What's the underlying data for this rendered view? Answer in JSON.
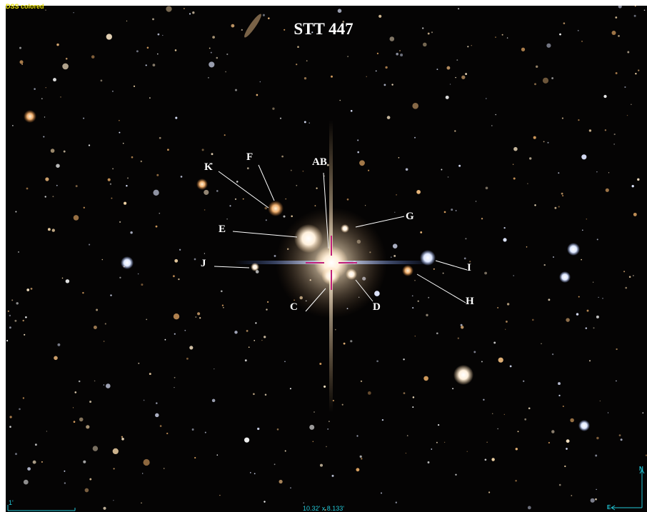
{
  "title": "STT 447",
  "survey_label": "DSS colored",
  "scale_bar_label": "1'",
  "field_of_view": "10.32' x 8.133'",
  "compass": {
    "north": "N",
    "east": "E"
  },
  "star_labels": [
    "AB",
    "C",
    "D",
    "E",
    "F",
    "G",
    "H",
    "I",
    "J",
    "K"
  ],
  "colors": {
    "background": "#050404",
    "label_text": "#ffffff",
    "survey_label": "#e8e000",
    "overlay_cyan": "#22c8d8",
    "reticle": "#c0207a"
  }
}
